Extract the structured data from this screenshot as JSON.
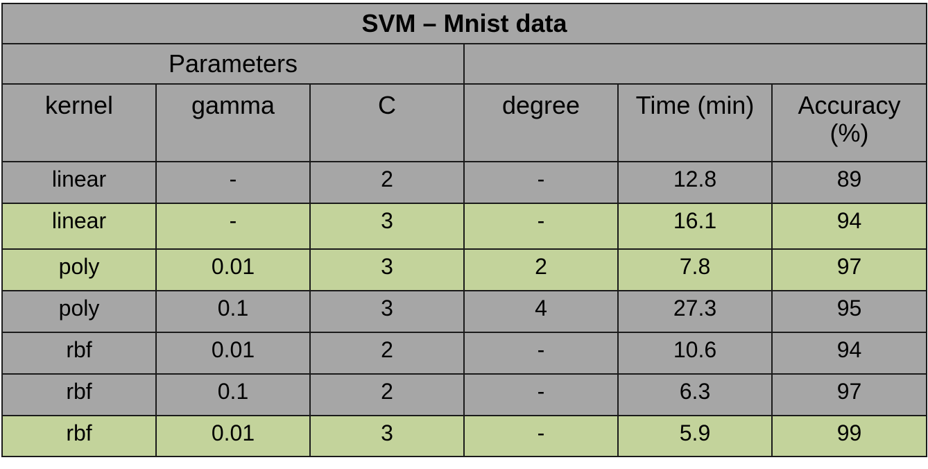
{
  "title": "SVM – Mnist data",
  "group_header": "Parameters",
  "headers": [
    "kernel",
    "gamma",
    "C",
    "degree",
    "Time (min)",
    "Accuracy (%)"
  ],
  "rows": [
    {
      "kernel": "linear",
      "gamma": "-",
      "C": "2",
      "degree": "-",
      "time": "12.8",
      "accuracy": "89",
      "highlight": false
    },
    {
      "kernel": "linear",
      "gamma": "-",
      "C": "3",
      "degree": "-",
      "time": "16.1",
      "accuracy": "94",
      "highlight": true
    },
    {
      "kernel": "poly",
      "gamma": "0.01",
      "C": "3",
      "degree": "2",
      "time": "7.8",
      "accuracy": "97",
      "highlight": true
    },
    {
      "kernel": "poly",
      "gamma": "0.1",
      "C": "3",
      "degree": "4",
      "time": "27.3",
      "accuracy": "95",
      "highlight": false
    },
    {
      "kernel": "rbf",
      "gamma": "0.01",
      "C": "2",
      "degree": "-",
      "time": "10.6",
      "accuracy": "94",
      "highlight": false
    },
    {
      "kernel": "rbf",
      "gamma": "0.1",
      "C": "2",
      "degree": "-",
      "time": "6.3",
      "accuracy": "97",
      "highlight": false
    },
    {
      "kernel": "rbf",
      "gamma": "0.01",
      "C": "3",
      "degree": "-",
      "time": "5.9",
      "accuracy": "99",
      "highlight": true
    }
  ],
  "colors": {
    "gray": "#a6a6a6",
    "green": "#c3d39b",
    "border": "#1a1a1a"
  }
}
